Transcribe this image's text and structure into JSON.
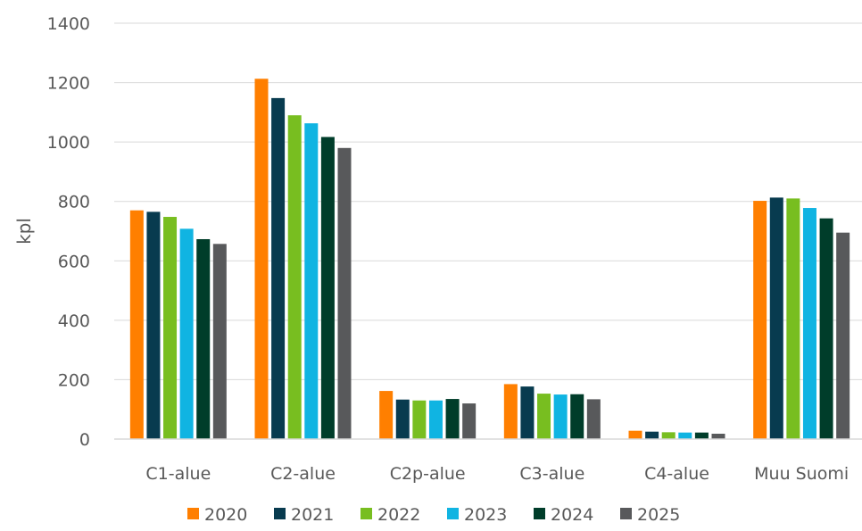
{
  "chart_data": {
    "type": "bar",
    "title": "",
    "xlabel": "",
    "ylabel": "kpl",
    "ylim": [
      0,
      1400
    ],
    "yticks": [
      0,
      200,
      400,
      600,
      800,
      1000,
      1200,
      1400
    ],
    "grid": true,
    "legend_position": "bottom",
    "categories": [
      "C1-alue",
      "C2-alue",
      "C2p-alue",
      "C3-alue",
      "C4-alue",
      "Muu Suomi"
    ],
    "series": [
      {
        "name": "2020",
        "color": "#ff7f00",
        "values": [
          770,
          1213,
          162,
          185,
          28,
          802
        ]
      },
      {
        "name": "2021",
        "color": "#083b4f",
        "values": [
          765,
          1148,
          133,
          177,
          25,
          813
        ]
      },
      {
        "name": "2022",
        "color": "#78be20",
        "values": [
          748,
          1090,
          130,
          153,
          23,
          810
        ]
      },
      {
        "name": "2023",
        "color": "#10b4e2",
        "values": [
          708,
          1063,
          130,
          150,
          22,
          778
        ]
      },
      {
        "name": "2024",
        "color": "#003d2a",
        "values": [
          673,
          1017,
          135,
          151,
          22,
          743
        ]
      },
      {
        "name": "2025",
        "color": "#58595b",
        "values": [
          657,
          980,
          120,
          134,
          18,
          695
        ]
      }
    ]
  }
}
